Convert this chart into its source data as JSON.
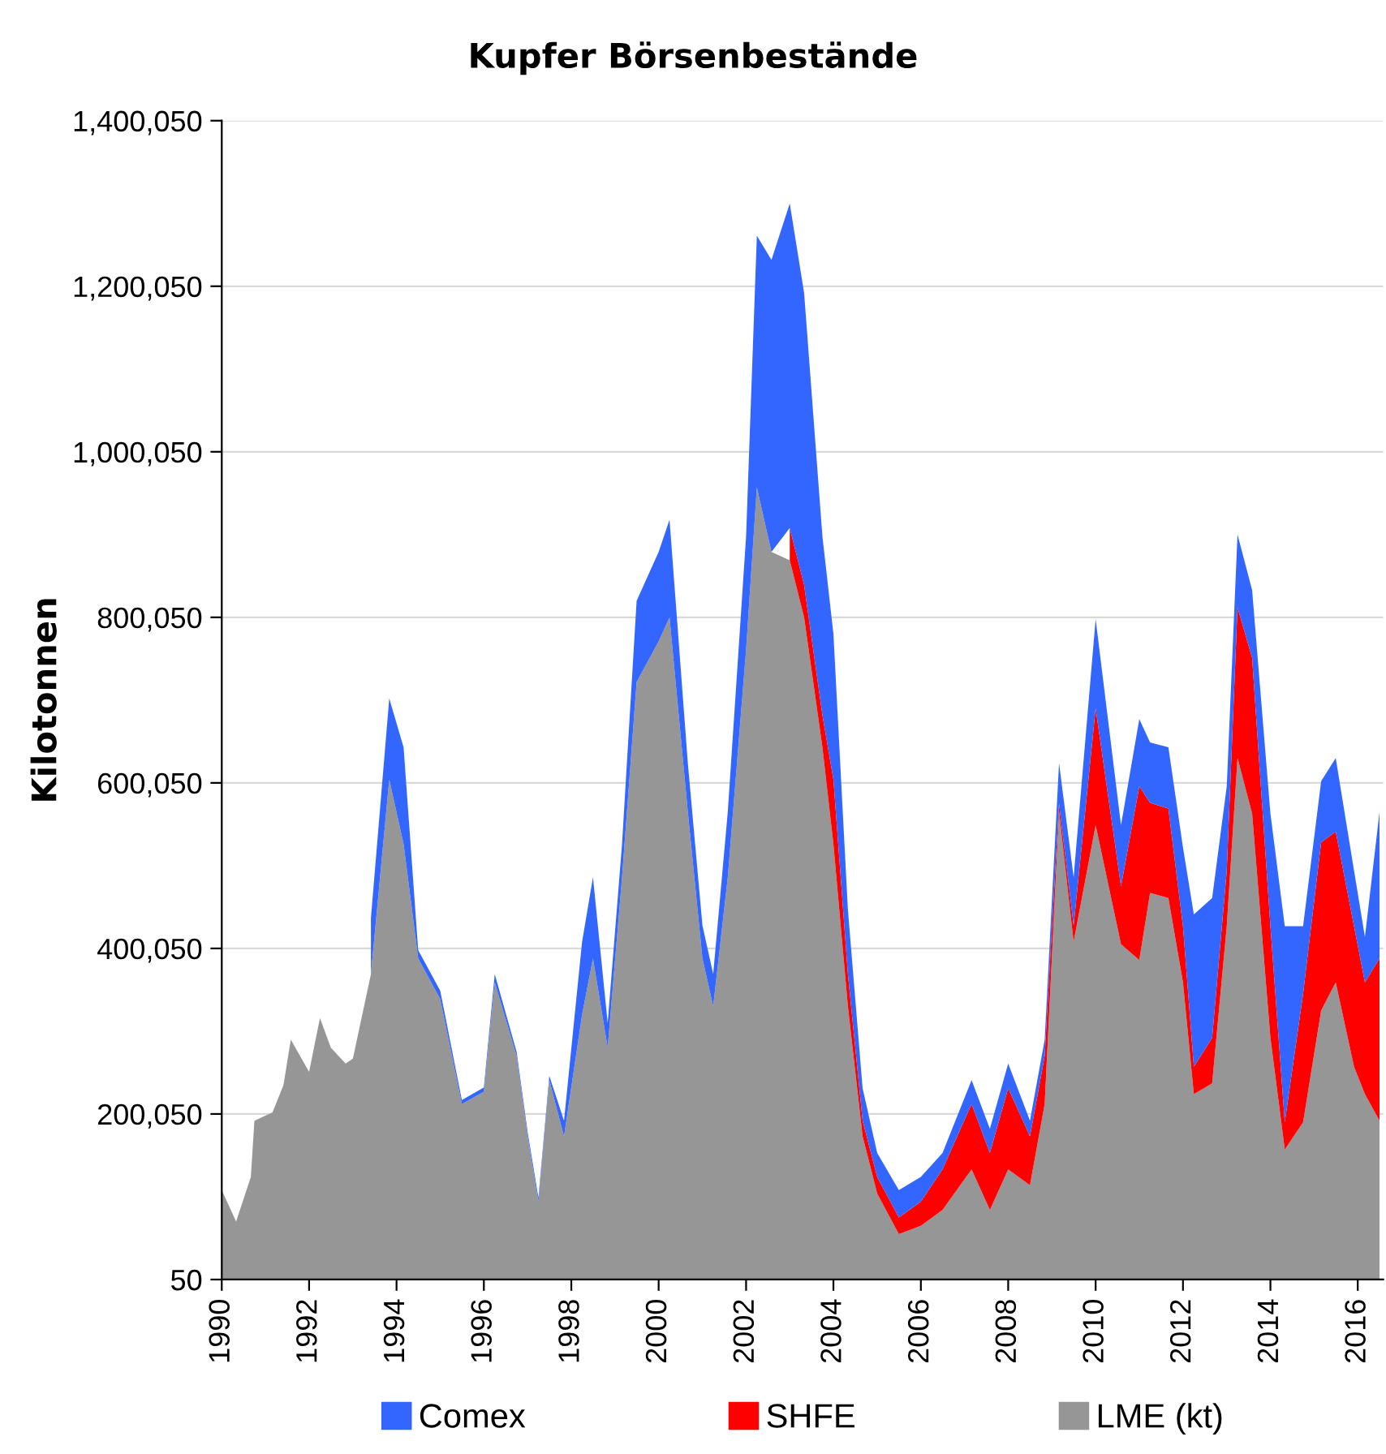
{
  "chart_data": {
    "type": "area",
    "title": "Kupfer Börsenbestände",
    "ylabel": "Kilotonnen",
    "stacked": true,
    "grid": "y",
    "legend": "bottom",
    "x": [
      "1990-01",
      "1990-05",
      "1990-09",
      "1990-10",
      "1991-03",
      "1991-06",
      "1991-08",
      "1992-01",
      "1992-04",
      "1992-07",
      "1992-11",
      "1993-01",
      "1993-06",
      "1993-11",
      "1994-03",
      "1994-07",
      "1995-01",
      "1995-07",
      "1996-01",
      "1996-04",
      "1996-10",
      "1997-01",
      "1997-04",
      "1997-07",
      "1997-11",
      "1998-04",
      "1998-07",
      "1998-11",
      "1999-03",
      "1999-07",
      "2000-01",
      "2000-04",
      "2000-09",
      "2001-01",
      "2001-04",
      "2001-08",
      "2002-01",
      "2002-04",
      "2002-08",
      "2003-01",
      "2003-05",
      "2003-10",
      "2004-01",
      "2004-05",
      "2004-09",
      "2005-01",
      "2005-07",
      "2006-01",
      "2006-07",
      "2007-03",
      "2007-08",
      "2008-01",
      "2008-07",
      "2008-11",
      "2009-03",
      "2009-07",
      "2010-01",
      "2010-08",
      "2011-01",
      "2011-04",
      "2011-09",
      "2012-01",
      "2012-04",
      "2012-09",
      "2013-01",
      "2013-04",
      "2013-08",
      "2014-01",
      "2014-05",
      "2014-10",
      "2015-03",
      "2015-07",
      "2015-12",
      "2016-03",
      "2016-07"
    ],
    "series": [
      {
        "name": "LME (kt)",
        "color": "#969696",
        "values": [
          108000,
          70000,
          124000,
          192000,
          202000,
          235000,
          290000,
          251000,
          316000,
          280000,
          261000,
          267000,
          369000,
          604000,
          526000,
          388000,
          339000,
          212000,
          227000,
          359000,
          270000,
          173000,
          94000,
          241000,
          173000,
          320000,
          388000,
          280000,
          486000,
          722000,
          771000,
          800000,
          565000,
          388000,
          330000,
          486000,
          761000,
          957000,
          879000,
          869000,
          800000,
          643000,
          526000,
          330000,
          173000,
          104000,
          55000,
          65000,
          84000,
          133000,
          84000,
          133000,
          114000,
          212000,
          565000,
          408000,
          549000,
          405000,
          386000,
          467000,
          461000,
          359000,
          224000,
          237000,
          427000,
          630000,
          563000,
          292000,
          157000,
          190000,
          325000,
          359000,
          257000,
          224000,
          192000
        ]
      },
      {
        "name": "SHFE",
        "color": "#ff0000",
        "values": [
          null,
          null,
          null,
          null,
          null,
          null,
          null,
          null,
          null,
          null,
          null,
          null,
          null,
          null,
          null,
          null,
          null,
          null,
          null,
          null,
          null,
          null,
          null,
          null,
          null,
          null,
          null,
          null,
          null,
          null,
          null,
          null,
          null,
          null,
          null,
          null,
          null,
          null,
          null,
          39000,
          39000,
          39000,
          78000,
          39000,
          19000,
          20000,
          20000,
          29000,
          49000,
          79000,
          69000,
          98000,
          59000,
          58000,
          10000,
          20000,
          141000,
          70000,
          210000,
          109000,
          108000,
          68000,
          33000,
          55000,
          67000,
          182000,
          188000,
          135000,
          33000,
          155000,
          203000,
          182000,
          170000,
          135000,
          196000
        ]
      },
      {
        "name": "Comex",
        "color": "#3366ff",
        "values": [
          null,
          null,
          null,
          null,
          null,
          null,
          null,
          null,
          null,
          null,
          null,
          null,
          68000,
          98000,
          117000,
          10000,
          10000,
          5000,
          5000,
          10000,
          5000,
          5000,
          5000,
          5000,
          19000,
          88000,
          98000,
          30000,
          40000,
          98000,
          108000,
          118000,
          59000,
          40000,
          39000,
          79000,
          137000,
          304000,
          353000,
          392000,
          353000,
          216000,
          176000,
          78000,
          39000,
          29000,
          33000,
          30000,
          20000,
          29000,
          29000,
          30000,
          19000,
          20000,
          49000,
          58000,
          108000,
          74000,
          81000,
          73000,
          74000,
          95000,
          184000,
          169000,
          102000,
          88000,
          82000,
          136000,
          237000,
          82000,
          74000,
          89000,
          67000,
          55000,
          177000
        ]
      }
    ],
    "xlim": [
      "1990-01-01",
      "2016-08-01"
    ],
    "xticks": [
      "1990",
      "1992",
      "1994",
      "1996",
      "1998",
      "2000",
      "2002",
      "2004",
      "2006",
      "2008",
      "2010",
      "2012",
      "2014",
      "2016"
    ],
    "ylim": [
      50,
      1400050
    ],
    "yticks": [
      {
        "value": 50,
        "label": "50"
      },
      {
        "value": 200050,
        "label": "200,050"
      },
      {
        "value": 400050,
        "label": "400,050"
      },
      {
        "value": 600050,
        "label": "600,050"
      },
      {
        "value": 800050,
        "label": "800,050"
      },
      {
        "value": 1000050,
        "label": "1,000,050"
      },
      {
        "value": 1200050,
        "label": "1,200,050"
      },
      {
        "value": 1400050,
        "label": "1,400,050"
      }
    ]
  }
}
